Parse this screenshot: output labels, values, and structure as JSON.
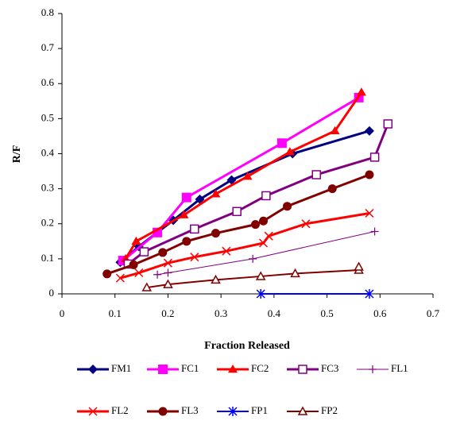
{
  "chart_data": {
    "type": "line",
    "xlabel": "Fraction Released",
    "ylabel": "R/F",
    "xlim": [
      0,
      0.7
    ],
    "xticks": [
      0,
      0.1,
      0.2,
      0.3,
      0.4,
      0.5,
      0.6,
      0.7
    ],
    "ylim": [
      0,
      0.8
    ],
    "yticks": [
      0,
      0.1,
      0.2,
      0.3,
      0.4,
      0.5,
      0.6,
      0.7,
      0.8
    ],
    "grid": false,
    "legend": "bottom",
    "series": [
      {
        "name": "FM1",
        "color": "#000080",
        "marker": "diamond",
        "line_width": 3,
        "x": [
          0.11,
          0.145,
          0.21,
          0.26,
          0.32,
          0.435,
          0.58
        ],
        "values": [
          0.09,
          0.135,
          0.21,
          0.27,
          0.325,
          0.4,
          0.465
        ]
      },
      {
        "name": "FC1",
        "color": "#ff00ff",
        "marker": "square",
        "line_width": 3,
        "x": [
          0.115,
          0.18,
          0.235,
          0.415,
          0.56
        ],
        "values": [
          0.095,
          0.175,
          0.275,
          0.43,
          0.56
        ]
      },
      {
        "name": "FC2",
        "color": "#ff0000",
        "marker": "triangle",
        "line_width": 3,
        "x": [
          0.12,
          0.14,
          0.23,
          0.29,
          0.35,
          0.43,
          0.515,
          0.565
        ],
        "values": [
          0.1,
          0.15,
          0.225,
          0.285,
          0.335,
          0.405,
          0.465,
          0.575
        ]
      },
      {
        "name": "FC3",
        "color": "#800080",
        "marker": "square-open",
        "line_width": 3,
        "x": [
          0.125,
          0.155,
          0.25,
          0.33,
          0.385,
          0.48,
          0.59,
          0.615
        ],
        "values": [
          0.085,
          0.12,
          0.185,
          0.235,
          0.28,
          0.34,
          0.39,
          0.485
        ]
      },
      {
        "name": "FL1",
        "color": "#800080",
        "marker": "plus",
        "line_width": 1,
        "x": [
          0.18,
          0.2,
          0.36,
          0.59
        ],
        "values": [
          0.055,
          0.06,
          0.1,
          0.178
        ]
      },
      {
        "name": "FL2",
        "color": "#ff0000",
        "marker": "x",
        "line_width": 3,
        "x": [
          0.11,
          0.145,
          0.2,
          0.25,
          0.31,
          0.38,
          0.39,
          0.46,
          0.58
        ],
        "values": [
          0.045,
          0.06,
          0.088,
          0.105,
          0.122,
          0.145,
          0.165,
          0.2,
          0.23
        ]
      },
      {
        "name": "FL3",
        "color": "#800000",
        "marker": "circle",
        "line_width": 3,
        "x": [
          0.085,
          0.135,
          0.19,
          0.235,
          0.29,
          0.365,
          0.38,
          0.425,
          0.51,
          0.58
        ],
        "values": [
          0.057,
          0.083,
          0.118,
          0.15,
          0.173,
          0.198,
          0.208,
          0.25,
          0.3,
          0.34
        ]
      },
      {
        "name": "FP1",
        "color": "#0000ff",
        "marker": "star",
        "line_width": 2,
        "x": [
          0.375,
          0.58
        ],
        "values": [
          0,
          0
        ]
      },
      {
        "name": "FP2",
        "color": "#800000",
        "marker": "triangle-open",
        "line_width": 2,
        "x": [
          0.16,
          0.2,
          0.29,
          0.375,
          0.44,
          0.56,
          0.56
        ],
        "values": [
          0.018,
          0.027,
          0.04,
          0.05,
          0.058,
          0.068,
          0.077
        ]
      }
    ]
  }
}
